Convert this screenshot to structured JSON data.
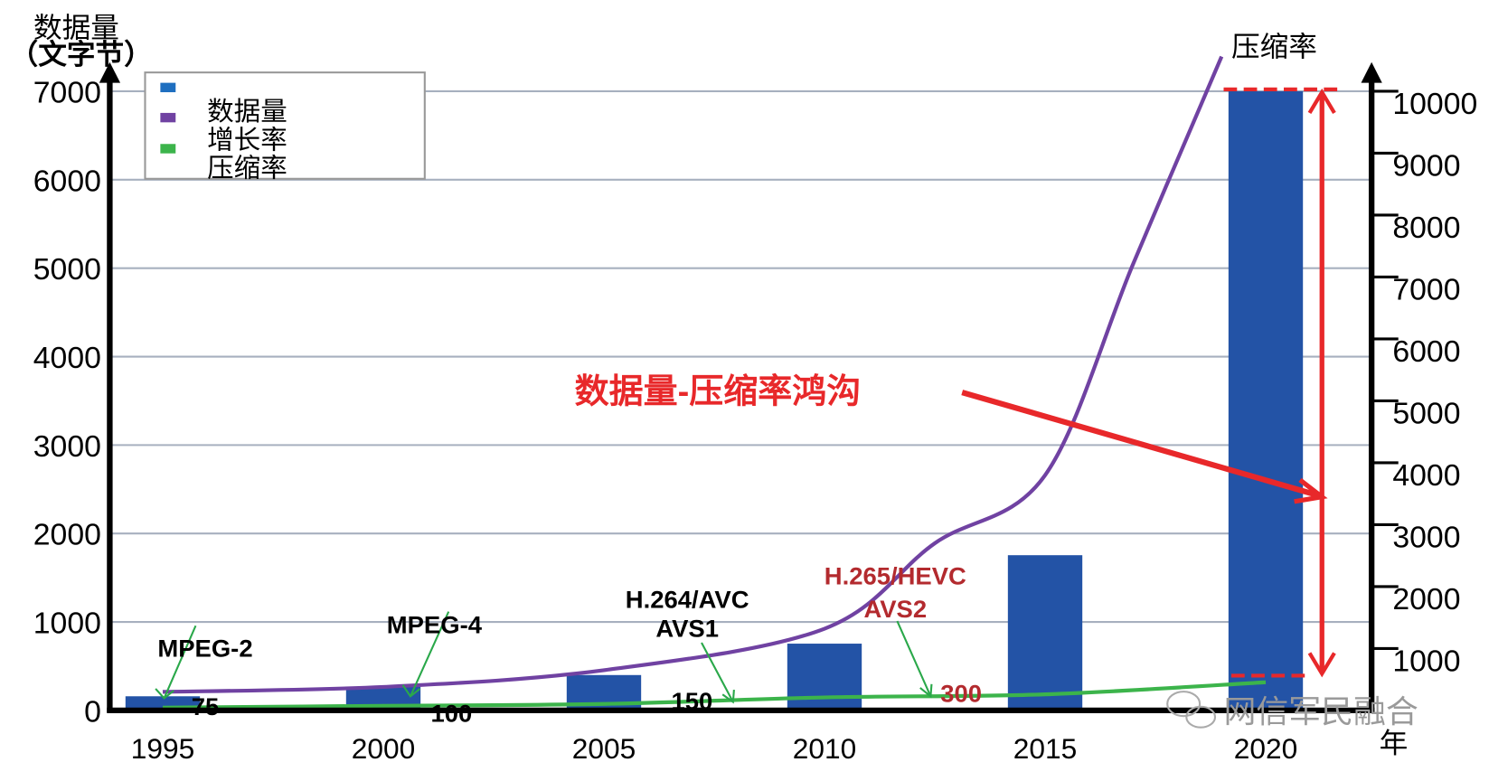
{
  "chart_data": {
    "type": "bar",
    "y_label": [
      "数据量",
      "（文字节）"
    ],
    "y2_label": "压缩率",
    "x_label": "年",
    "xlim": [
      1993.8,
      2022.4
    ],
    "xticks": [
      1995,
      2000,
      2005,
      2010,
      2015,
      2020
    ],
    "ylim": [
      0,
      7000
    ],
    "yticks": [
      0,
      1000,
      2000,
      3000,
      4000,
      5000,
      6000,
      7000
    ],
    "y2lim": [
      0,
      10000
    ],
    "y2ticks": [
      1000,
      2000,
      3000,
      4000,
      5000,
      6000,
      7000,
      8000,
      9000,
      10000
    ],
    "grid": true,
    "legend": "upper left",
    "series": [
      {
        "name": "数据量",
        "type": "bar",
        "color": "#2353a6",
        "legend_color": "#1f6fc0",
        "x": [
          1995,
          2000,
          2005,
          2010,
          2015,
          2020
        ],
        "values": [
          160,
          265,
          400,
          755,
          1755,
          7000
        ]
      },
      {
        "name": "增长率",
        "type": "line",
        "axis": "y2",
        "color": "#7042a2",
        "legend_color": "#7042a2",
        "x": [
          1995,
          2000,
          2005,
          2010,
          2012.5,
          2015,
          2017,
          2019
        ],
        "values": [
          300,
          380,
          650,
          1320,
          2700,
          3800,
          7220,
          10560
        ]
      },
      {
        "name": "压缩率",
        "type": "line",
        "axis": "y2",
        "color": "#3cb44b",
        "legend_color": "#3cb44b",
        "x": [
          1995,
          2000,
          2005,
          2010,
          2015,
          2020
        ],
        "values": [
          45,
          75,
          105,
          210,
          260,
          455
        ]
      }
    ],
    "annotations": [
      "MPEG-2",
      "MPEG-4",
      "H.264/AVC",
      "AVS1",
      "H.265/HEVC",
      "AVS2",
      "75",
      "100",
      "150",
      "300",
      "数据量-压缩率鸿沟"
    ],
    "watermark": "网信军民融合"
  }
}
